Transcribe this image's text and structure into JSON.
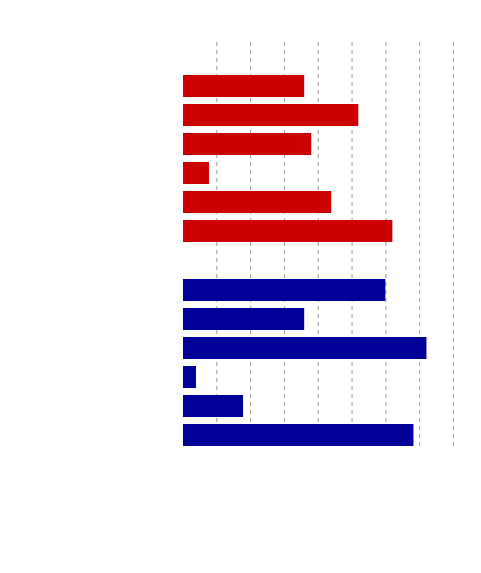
{
  "chart_data": {
    "type": "bar",
    "orientation": "horizontal",
    "title": "",
    "xlabel": "",
    "ylabel": "",
    "xlim": [
      0,
      100
    ],
    "grid": "vertical dashed",
    "legend": "none",
    "groups": [
      {
        "color": "#cc0000",
        "values": [
          44.8,
          64.8,
          47.4,
          9.6,
          54.8,
          77.4
        ]
      },
      {
        "color": "#000099",
        "values": [
          74.8,
          44.8,
          90.0,
          4.8,
          22.2,
          85.2
        ]
      }
    ]
  }
}
